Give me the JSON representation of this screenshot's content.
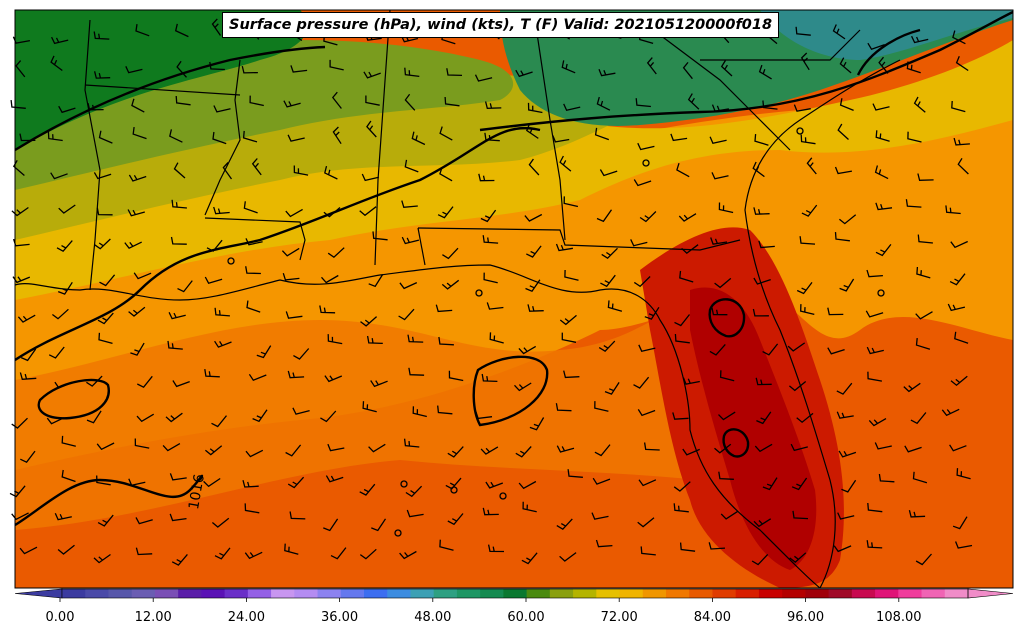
{
  "title": "Surface pressure (hPa), wind (kts), T (F) Valid: 202105120000f018",
  "contour_label": "1016",
  "colorbar": {
    "colors": [
      "#3b3ba0",
      "#4a4aa8",
      "#5757aa",
      "#6a5db2",
      "#7a4fb5",
      "#5a1ea8",
      "#5a12b5",
      "#6a2fc8",
      "#9460e6",
      "#c896f0",
      "#b48cf2",
      "#8c82f0",
      "#6478ee",
      "#3c6ef0",
      "#3c8ce0",
      "#3ca0b4",
      "#2ea082",
      "#1e9664",
      "#148a50",
      "#0a7830",
      "#4a8a10",
      "#8aa010",
      "#b4b400",
      "#e6c000",
      "#f0b400",
      "#f09600",
      "#f07800",
      "#e85a00",
      "#e03c00",
      "#d81e00",
      "#c80000",
      "#b40000",
      "#a0000a",
      "#a00a28",
      "#c80a50",
      "#e01478",
      "#f03c9c",
      "#f064b4",
      "#f08cc8"
    ],
    "tick_labels": [
      "0.00",
      "12.00",
      "24.00",
      "36.00",
      "48.00",
      "60.00",
      "72.00",
      "84.00",
      "96.00",
      "108.00"
    ],
    "vmin": -2,
    "vmax": 118,
    "tick_values": [
      0,
      12,
      24,
      36,
      48,
      60,
      72,
      84,
      96,
      108
    ]
  },
  "temperature_zones": [
    {
      "name": "cool-north",
      "color": "#0f7a1e"
    },
    {
      "name": "teal-northeast",
      "color": "#2e8a5e"
    },
    {
      "name": "olive",
      "color": "#7a9c1e"
    },
    {
      "name": "yellow-olive",
      "color": "#b8ac0a"
    },
    {
      "name": "gold",
      "color": "#e8b800"
    },
    {
      "name": "orange",
      "color": "#f59600"
    },
    {
      "name": "dark-orange",
      "color": "#f07200"
    },
    {
      "name": "red-orange",
      "color": "#e85400"
    },
    {
      "name": "red",
      "color": "#cc1200"
    },
    {
      "name": "dark-red",
      "color": "#b00000"
    }
  ]
}
